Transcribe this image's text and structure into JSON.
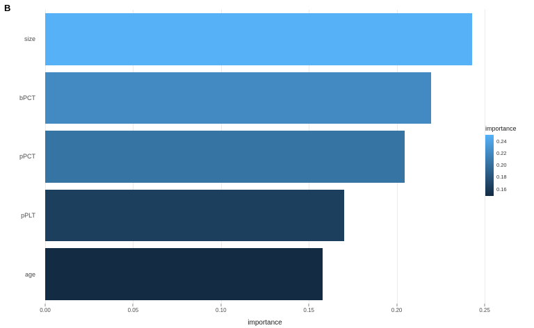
{
  "chart_data": {
    "type": "bar",
    "orientation": "horizontal",
    "title": "B",
    "categories": [
      "size",
      "bPCT",
      "pPCT",
      "pPLT",
      "age"
    ],
    "values": [
      0.243,
      0.2195,
      0.2045,
      0.17,
      0.158
    ],
    "colors": [
      "#56B1F7",
      "#4389C2",
      "#3674A4",
      "#1D3F5E",
      "#132B43"
    ],
    "xlabel": "importance",
    "xlim": [
      0,
      0.25
    ],
    "x_ticks": [
      "0.00",
      "0.05",
      "0.10",
      "0.15",
      "0.20",
      "0.25"
    ],
    "grid": true,
    "grid_color": "#ebebeb",
    "legend": {
      "title": "importance",
      "position": "right",
      "labels": [
        "0.24",
        "0.22",
        "0.20",
        "0.18",
        "0.16"
      ],
      "gradient_top": "#56B1F7",
      "gradient_bottom": "#132B43"
    }
  }
}
